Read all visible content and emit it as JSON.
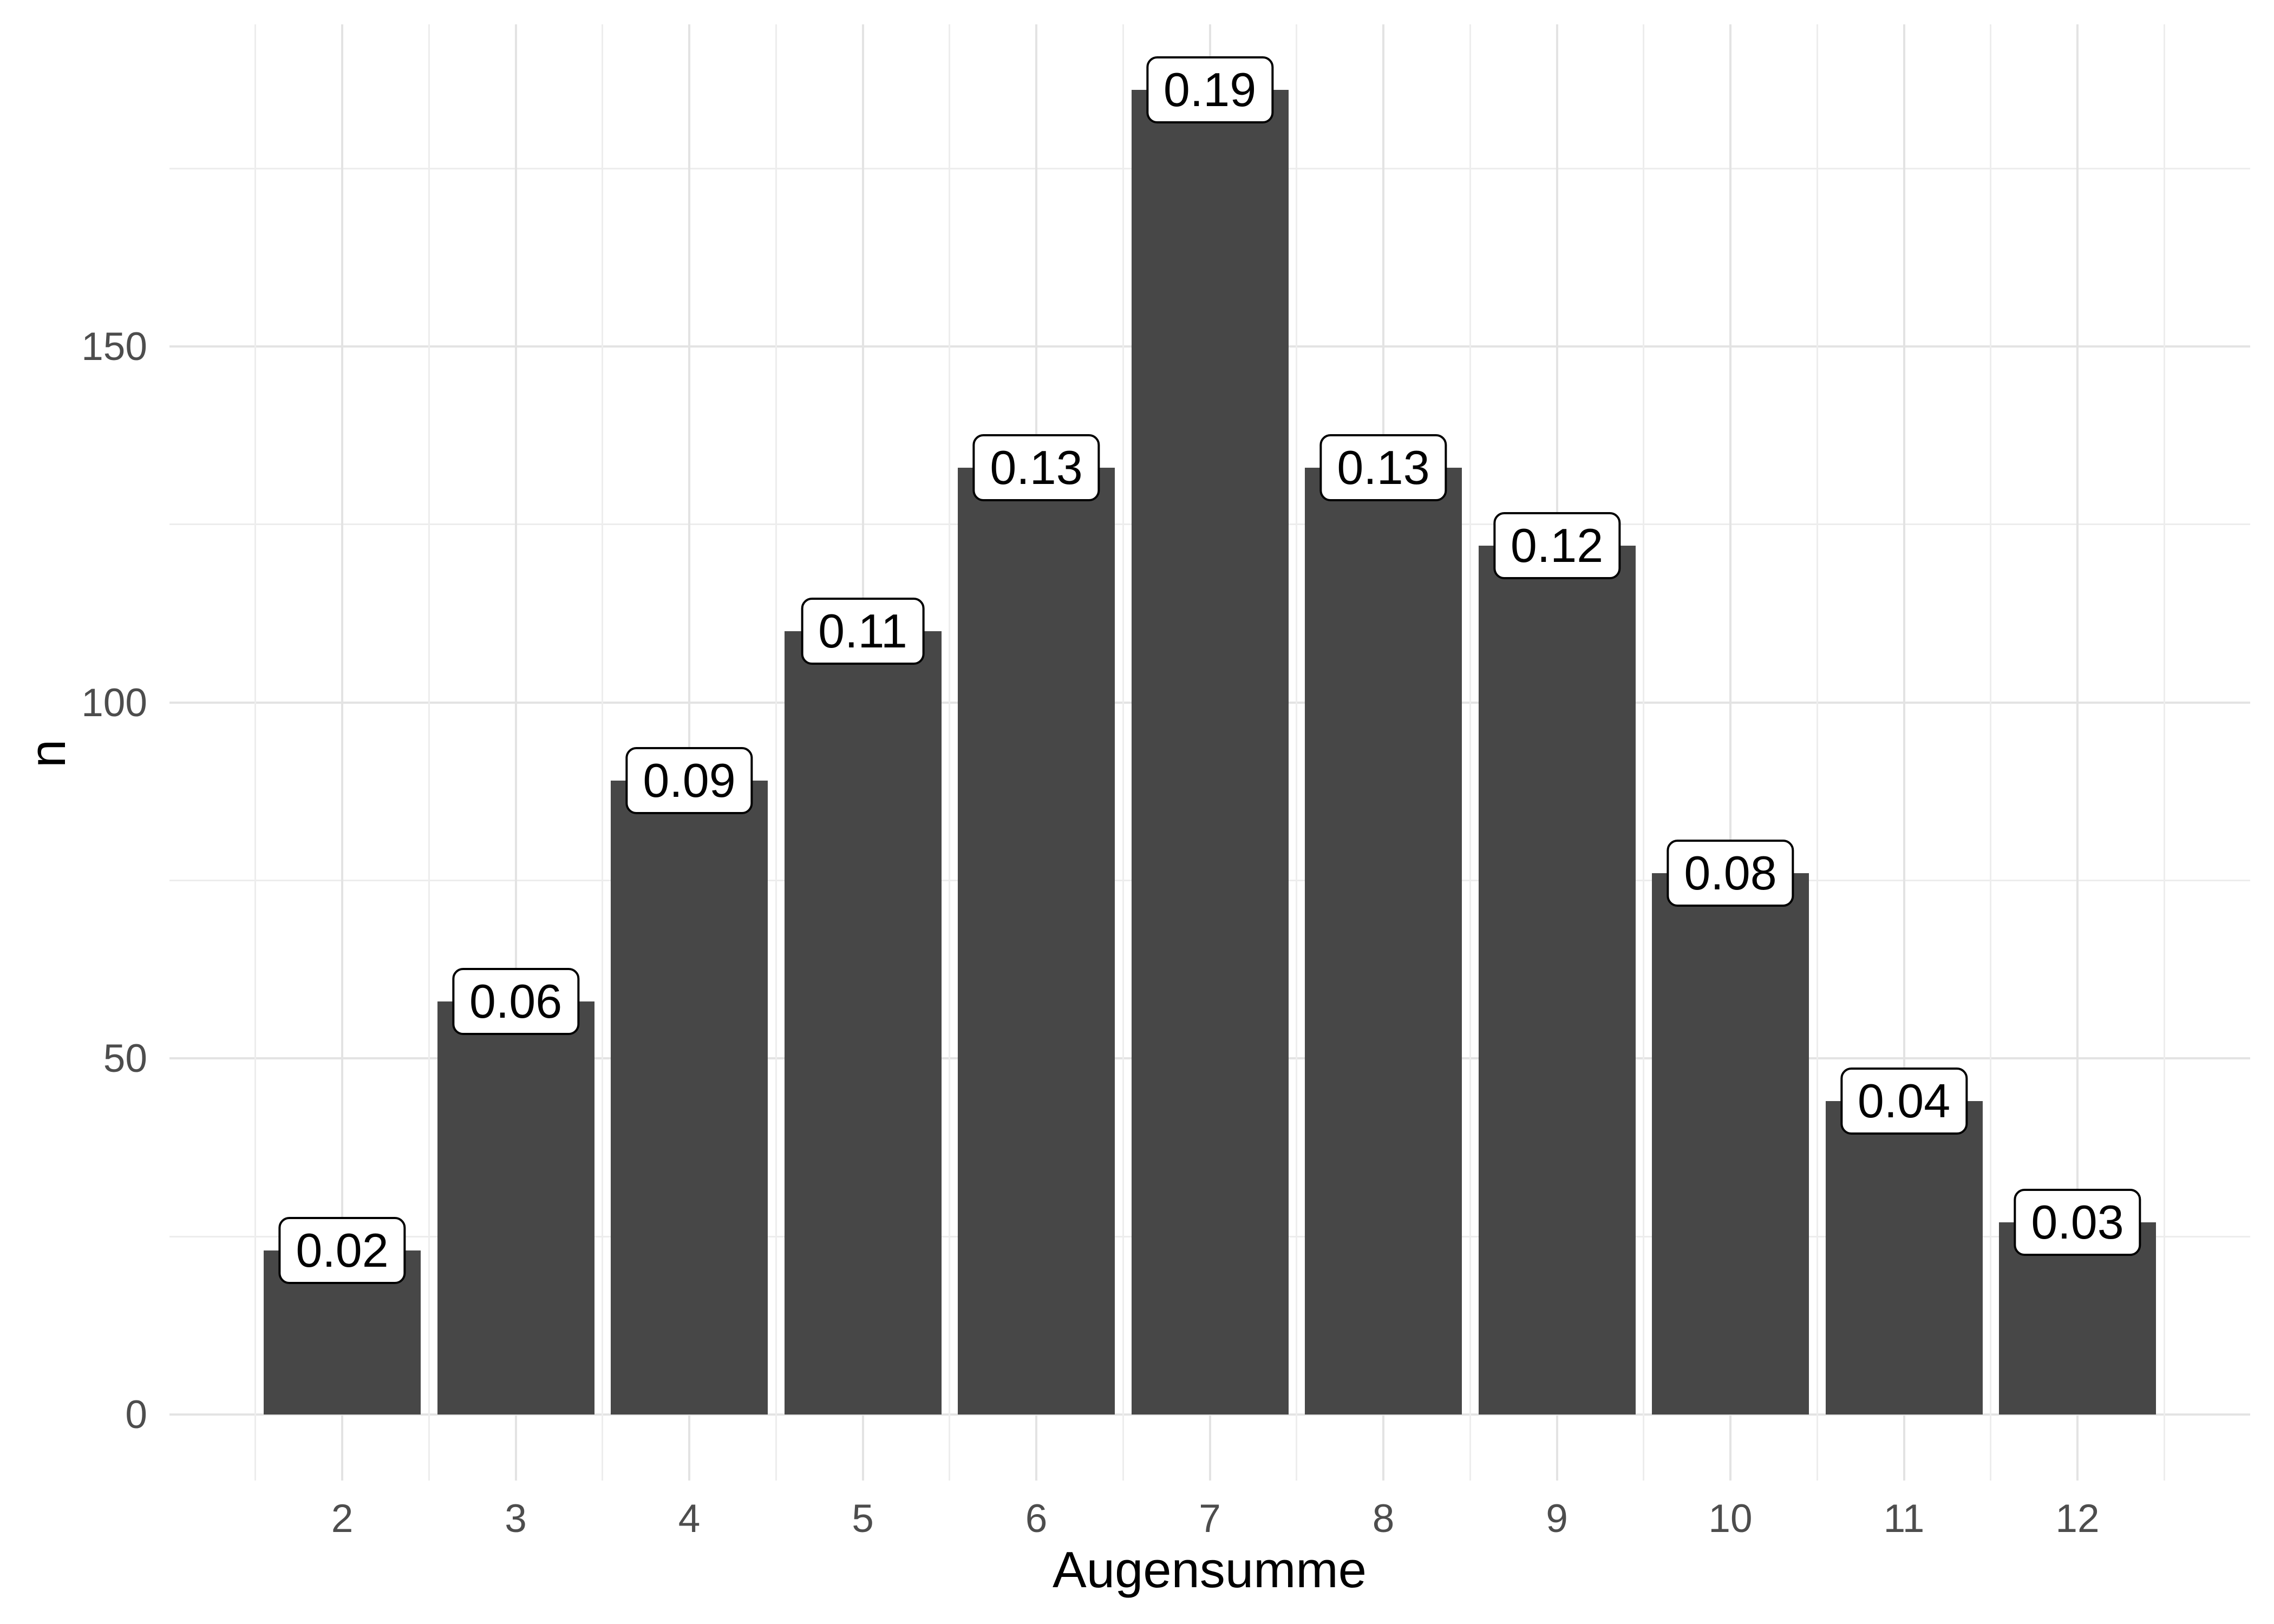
{
  "chart_data": {
    "type": "bar",
    "title": "",
    "xlabel": "Augensumme",
    "ylabel": "n",
    "categories": [
      "2",
      "3",
      "4",
      "5",
      "6",
      "7",
      "8",
      "9",
      "10",
      "11",
      "12"
    ],
    "values": [
      23,
      58,
      89,
      110,
      133,
      186,
      133,
      122,
      76,
      44,
      27
    ],
    "bar_labels": [
      "0.02",
      "0.06",
      "0.09",
      "0.11",
      "0.13",
      "0.19",
      "0.13",
      "0.12",
      "0.08",
      "0.04",
      "0.03"
    ],
    "y_tick_values": [
      0,
      50,
      100,
      150
    ],
    "y_tick_labels": [
      "0",
      "50",
      "100",
      "150"
    ],
    "y_minor_values": [
      25,
      75,
      125,
      175
    ],
    "ylim": [
      0,
      195
    ],
    "grid": true,
    "legend_position": "none",
    "colors": {
      "bar_fill": "#474747",
      "label_fill": "#FFFFFF",
      "label_border": "#000000",
      "label_text": "#000000",
      "grid_major": "#E3E3E3",
      "grid_minor": "#EDEDED",
      "tick_text": "#4D4D4D",
      "axis_title": "#000000",
      "background": "#FFFFFF"
    }
  }
}
